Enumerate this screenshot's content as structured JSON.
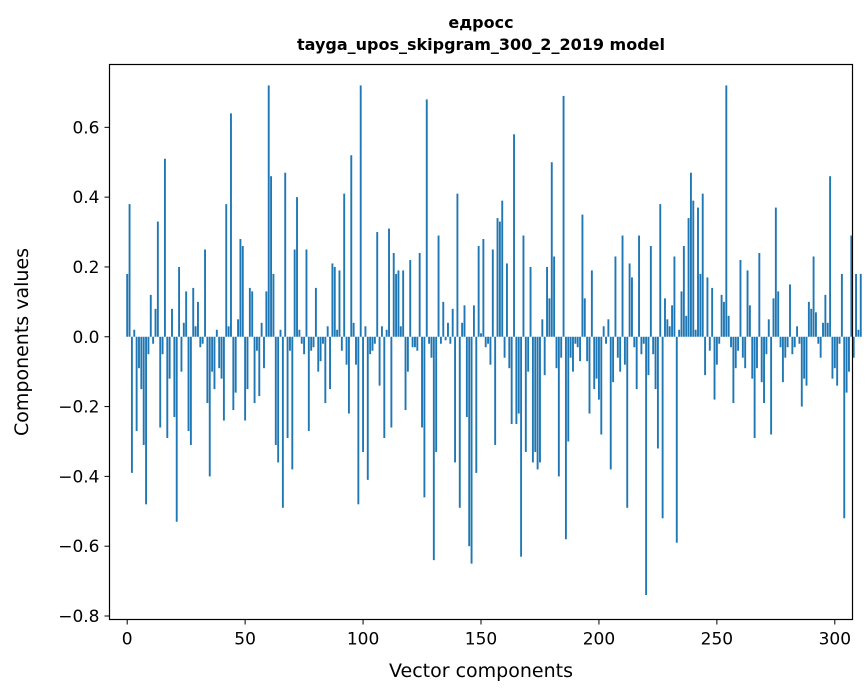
{
  "chart_data": {
    "type": "bar",
    "title": "едросс",
    "subtitle": "tayga_upos_skipgram_300_2_2019 model",
    "xlabel": "Vector components",
    "ylabel": "Components values",
    "xlim": [
      -7.5,
      307.5
    ],
    "ylim": [
      -0.81,
      0.78
    ],
    "xticks": [
      0,
      50,
      100,
      150,
      200,
      250,
      300
    ],
    "yticks": [
      -0.8,
      -0.6,
      -0.4,
      -0.2,
      0.0,
      0.2,
      0.4,
      0.6
    ],
    "xtick_labels": [
      "0",
      "50",
      "100",
      "150",
      "200",
      "250",
      "300"
    ],
    "ytick_labels": [
      "−0.8",
      "−0.6",
      "−0.4",
      "−0.2",
      "0.0",
      "0.2",
      "0.4",
      "0.6"
    ],
    "bar_color": "#1f77b4",
    "values": [
      0.18,
      0.38,
      -0.39,
      0.02,
      -0.27,
      -0.09,
      -0.15,
      -0.31,
      -0.48,
      -0.05,
      0.12,
      -0.02,
      0.08,
      0.33,
      -0.26,
      -0.05,
      0.51,
      -0.29,
      -0.12,
      0.08,
      -0.23,
      -0.53,
      0.2,
      -0.1,
      0.04,
      0.13,
      -0.27,
      -0.31,
      0.14,
      0.03,
      0.1,
      -0.03,
      -0.02,
      0.25,
      -0.19,
      -0.4,
      -0.1,
      -0.15,
      0.02,
      -0.09,
      -0.12,
      -0.24,
      0.38,
      0.03,
      0.64,
      -0.21,
      -0.16,
      0.05,
      0.28,
      0.26,
      -0.24,
      -0.15,
      0.14,
      0.13,
      -0.19,
      -0.04,
      -0.17,
      0.04,
      -0.09,
      0.13,
      0.72,
      0.46,
      0.18,
      -0.31,
      -0.36,
      0.02,
      -0.49,
      0.47,
      -0.29,
      -0.04,
      -0.38,
      0.25,
      0.4,
      0.02,
      -0.02,
      -0.05,
      0.25,
      -0.27,
      -0.04,
      -0.03,
      0.14,
      -0.1,
      -0.07,
      -0.02,
      -0.19,
      0.03,
      -0.15,
      0.21,
      0.2,
      0.02,
      0.19,
      -0.04,
      0.41,
      -0.08,
      -0.22,
      0.52,
      0.04,
      -0.08,
      -0.48,
      0.72,
      -0.33,
      0.03,
      -0.41,
      -0.05,
      -0.04,
      -0.02,
      0.3,
      -0.14,
      0.03,
      -0.29,
      0.02,
      0.31,
      -0.26,
      0.24,
      0.18,
      0.19,
      0.03,
      0.19,
      -0.21,
      -0.1,
      0.22,
      -0.03,
      -0.03,
      -0.04,
      0.24,
      -0.26,
      -0.46,
      0.68,
      -0.02,
      -0.06,
      -0.64,
      -0.33,
      0.29,
      -0.02,
      0.1,
      -0.01,
      0.04,
      -0.02,
      0.08,
      -0.36,
      0.41,
      -0.49,
      0.04,
      0.09,
      -0.23,
      -0.6,
      -0.65,
      0.09,
      -0.39,
      0.26,
      0.01,
      0.28,
      -0.03,
      -0.02,
      -0.08,
      0.25,
      -0.31,
      0.34,
      0.33,
      0.39,
      -0.06,
      0.21,
      -0.09,
      -0.25,
      0.58,
      -0.25,
      -0.22,
      -0.63,
      0.29,
      -0.33,
      -0.1,
      0.2,
      -0.36,
      -0.33,
      -0.38,
      -0.36,
      0.05,
      -0.11,
      0.2,
      0.11,
      0.5,
      0.23,
      -0.09,
      -0.4,
      -0.06,
      0.69,
      -0.58,
      -0.3,
      -0.06,
      -0.1,
      -0.02,
      -0.03,
      -0.07,
      0.35,
      0.11,
      -0.07,
      -0.22,
      0.19,
      -0.15,
      -0.12,
      -0.18,
      -0.28,
      0.03,
      -0.02,
      0.05,
      -0.38,
      -0.13,
      0.23,
      -0.06,
      -0.1,
      0.29,
      -0.08,
      -0.49,
      0.21,
      0.17,
      -0.03,
      -0.15,
      0.29,
      -0.05,
      -0.02,
      -0.74,
      -0.11,
      0.26,
      -0.05,
      -0.15,
      -0.32,
      0.38,
      -0.52,
      0.11,
      0.05,
      0.03,
      0.09,
      0.23,
      -0.59,
      0.02,
      0.13,
      0.26,
      0.06,
      0.34,
      0.47,
      0.39,
      0.02,
      0.37,
      0.18,
      0.41,
      -0.11,
      0.17,
      -0.04,
      0.14,
      -0.18,
      -0.08,
      -0.02,
      0.12,
      0.1,
      0.72,
      0.06,
      -0.03,
      -0.19,
      -0.09,
      -0.04,
      0.22,
      -0.06,
      -0.09,
      0.19,
      0.09,
      -0.12,
      -0.29,
      -0.09,
      0.24,
      -0.13,
      -0.19,
      -0.05,
      0.05,
      -0.28,
      0.11,
      0.37,
      0.13,
      -0.03,
      -0.13,
      -0.06,
      -0.03,
      0.15,
      -0.05,
      -0.03,
      0.03,
      -0.02,
      -0.2,
      -0.12,
      -0.14,
      0.1,
      0.08,
      0.23,
      0.07,
      -0.02,
      -0.06,
      0.04,
      0.12,
      0.04,
      0.46,
      -0.12,
      -0.09,
      -0.14,
      -0.02,
      0.18,
      -0.52,
      -0.16,
      -0.1,
      0.29,
      -0.06,
      0.18,
      0.02,
      0.18
    ]
  }
}
